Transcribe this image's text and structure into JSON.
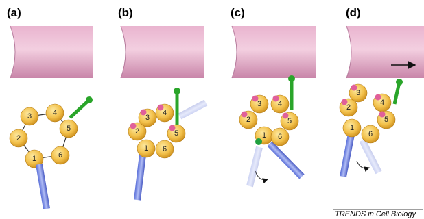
{
  "panels": [
    {
      "label": "(a)",
      "nodes": [
        "1",
        "2",
        "3",
        "4",
        "5",
        "6"
      ]
    },
    {
      "label": "(b)",
      "nodes": [
        "1",
        "2",
        "3",
        "4",
        "5",
        "6"
      ]
    },
    {
      "label": "(c)",
      "nodes": [
        "1",
        "2",
        "3",
        "4",
        "5",
        "6"
      ]
    },
    {
      "label": "(d)",
      "nodes": [
        "1",
        "2",
        "3",
        "4",
        "5",
        "6"
      ]
    }
  ],
  "credit": "TRENDS in Cell Biology"
}
